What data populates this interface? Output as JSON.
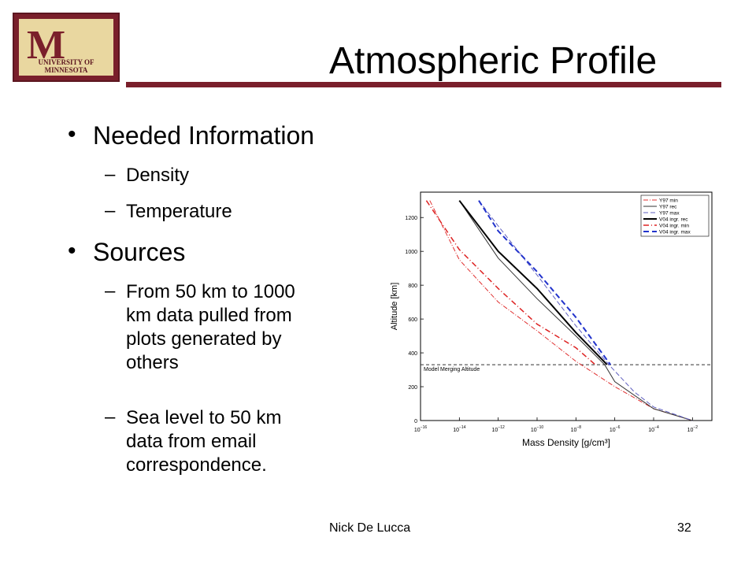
{
  "slide": {
    "title": "Atmospheric Profile",
    "logo_caption": "UNIVERSITY OF MINNESOTA",
    "bullets": [
      {
        "label": "Needed Information",
        "subs": [
          "Density",
          "Temperature"
        ]
      },
      {
        "label": "Sources",
        "subs": [
          [
            "From 50 km to 1000",
            "km data pulled from",
            "plots generated by",
            "others"
          ],
          [
            "Sea level to 50 km",
            "data from email",
            "correspondence."
          ]
        ]
      }
    ],
    "footer_author": "Nick De Lucca",
    "page_number": "32",
    "colors": {
      "maroon": "#7a1f2b",
      "gold": "#e9d7a0"
    }
  },
  "chart_data": {
    "type": "line",
    "xlabel": "Mass Density [g/cm³]",
    "ylabel": "Altitude [km]",
    "x_scale": "log",
    "xlim": [
      1e-16,
      0.1
    ],
    "ylim": [
      0,
      1350
    ],
    "x_tick_exponents": [
      -16,
      -14,
      -12,
      -10,
      -8,
      -6,
      -4,
      -2
    ],
    "y_ticks": [
      0,
      200,
      400,
      600,
      800,
      1000,
      1200
    ],
    "annotation": "Model Merging Altitude",
    "merging_altitude": 330,
    "legend_position": "top-right",
    "series": [
      {
        "name": "Y97 min",
        "color": "#e03030",
        "dash": "6,2,1,2",
        "width": 1,
        "points": [
          [
            3e-16,
            1300
          ],
          [
            1e-14,
            950
          ],
          [
            1e-12,
            700
          ],
          [
            1e-10,
            530
          ],
          [
            1e-08,
            350
          ],
          [
            1e-06,
            200
          ],
          [
            0.0001,
            70
          ],
          [
            0.01,
            0
          ]
        ]
      },
      {
        "name": "Y97 rec",
        "color": "#333333",
        "dash": "",
        "width": 1,
        "points": [
          [
            1e-14,
            1300
          ],
          [
            1e-12,
            960
          ],
          [
            1e-10,
            720
          ],
          [
            1e-08,
            500
          ],
          [
            3e-07,
            330
          ],
          [
            1e-06,
            230
          ],
          [
            0.0001,
            70
          ],
          [
            0.01,
            0
          ]
        ]
      },
      {
        "name": "Y97 max",
        "color": "#6060c0",
        "dash": "6,3",
        "width": 1,
        "points": [
          [
            1e-13,
            1300
          ],
          [
            1e-12,
            1150
          ],
          [
            1e-10,
            860
          ],
          [
            1e-08,
            560
          ],
          [
            5e-07,
            330
          ],
          [
            1e-05,
            170
          ],
          [
            0.0001,
            80
          ],
          [
            0.01,
            0
          ]
        ]
      },
      {
        "name": "V04 ingr. rec",
        "color": "#000000",
        "dash": "",
        "width": 2,
        "points": [
          [
            1e-14,
            1300
          ],
          [
            1e-12,
            1000
          ],
          [
            1e-10,
            780
          ],
          [
            1e-08,
            520
          ],
          [
            4e-07,
            330
          ]
        ]
      },
      {
        "name": "V04 ingr. min",
        "color": "#dd2222",
        "dash": "7,3,1,3",
        "width": 1.5,
        "points": [
          [
            2e-16,
            1300
          ],
          [
            1e-14,
            1010
          ],
          [
            1e-12,
            780
          ],
          [
            1e-10,
            570
          ],
          [
            1e-08,
            430
          ],
          [
            1e-07,
            330
          ]
        ]
      },
      {
        "name": "V04 ingr. max",
        "color": "#2233cc",
        "dash": "7,4",
        "width": 2,
        "points": [
          [
            1e-13,
            1300
          ],
          [
            1e-12,
            1120
          ],
          [
            1e-10,
            880
          ],
          [
            1e-08,
            610
          ],
          [
            6e-07,
            330
          ]
        ]
      }
    ]
  }
}
